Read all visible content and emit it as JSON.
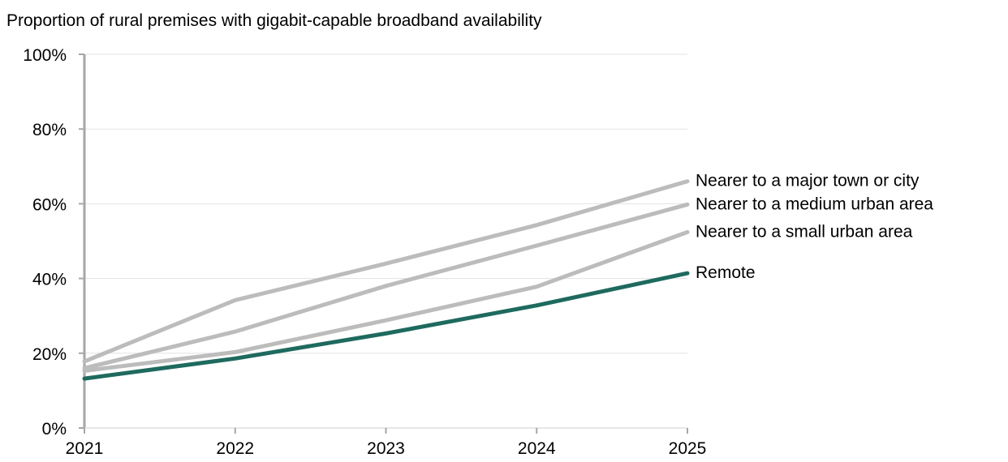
{
  "chart_data": {
    "type": "line",
    "title": "Proportion of rural premises with gigabit-capable broadband availability",
    "x": [
      "2021",
      "2022",
      "2023",
      "2024",
      "2025"
    ],
    "ylim": [
      0,
      100
    ],
    "y_ticks": [
      "0%",
      "20%",
      "40%",
      "60%",
      "80%",
      "100%"
    ],
    "y_tick_values": [
      0,
      20,
      40,
      60,
      80,
      100
    ],
    "grid": "horizontal",
    "legend": "direct labels at line ends",
    "series": [
      {
        "name": "Nearer to a major town or city",
        "values": [
          17.8,
          34.2,
          44.0,
          54.3,
          66.0
        ],
        "color": "#bcbcbc"
      },
      {
        "name": "Nearer to a medium urban area",
        "values": [
          16.0,
          25.8,
          38.0,
          48.8,
          59.8
        ],
        "color": "#bcbcbc"
      },
      {
        "name": "Nearer to a small urban area",
        "values": [
          15.3,
          20.3,
          28.8,
          37.8,
          52.4
        ],
        "color": "#bcbcbc"
      },
      {
        "name": "Remote",
        "values": [
          13.2,
          18.6,
          25.3,
          32.8,
          41.4
        ],
        "color": "#1e6a5e"
      }
    ]
  }
}
